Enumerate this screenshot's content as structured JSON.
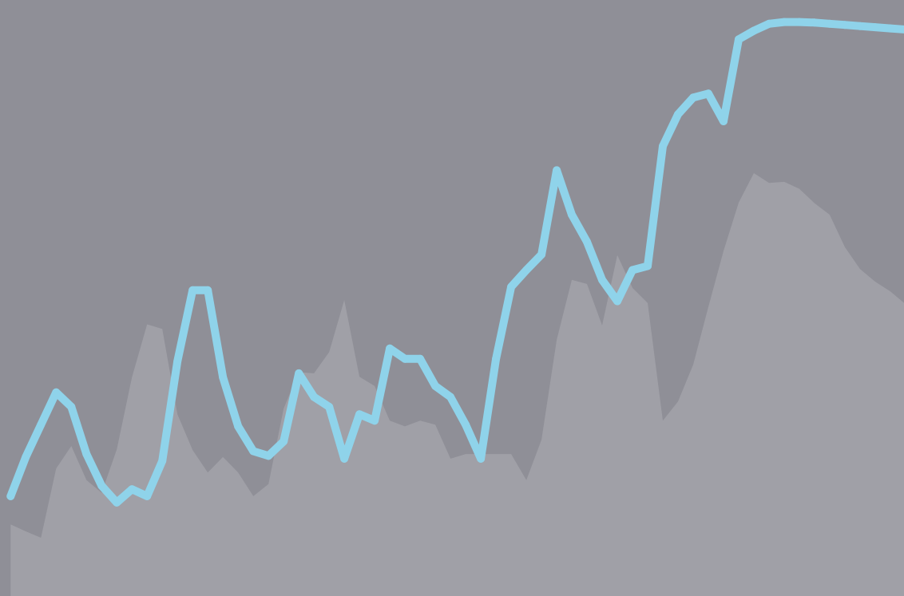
{
  "chart_data": {
    "type": "area",
    "title": "",
    "xlabel": "",
    "ylabel": "",
    "grid": false,
    "x": [
      0,
      1,
      2,
      3,
      4,
      5,
      6,
      7,
      8,
      9,
      10,
      11,
      12,
      13,
      14,
      15,
      16,
      17,
      18,
      19,
      20,
      21,
      22,
      23,
      24,
      25,
      26,
      27,
      28,
      29,
      30,
      31,
      32,
      33,
      34,
      35,
      36,
      37,
      38,
      39,
      40,
      41,
      42,
      43,
      44,
      45,
      46,
      47,
      48,
      49,
      50,
      51,
      52,
      53,
      54,
      55,
      56,
      57,
      58,
      59
    ],
    "xlim": [
      -0.7,
      58.9
    ],
    "ylim": [
      0,
      100
    ],
    "series": [
      {
        "kind": "area",
        "color": "#a0a0a8",
        "values": [
          12.4,
          11.2,
          10.1,
          22.1,
          26,
          20.1,
          17.9,
          25.4,
          37.9,
          47.1,
          46.3,
          31.5,
          25.3,
          21.4,
          24.1,
          21.4,
          17.3,
          19.4,
          32.5,
          38.8,
          38.6,
          42.3,
          51.3,
          38,
          36.4,
          30.4,
          29.4,
          30.4,
          29.7,
          23.8,
          24.6,
          24.6,
          24.6,
          24.6,
          20.1,
          27.1,
          44.4,
          54.8,
          54.1,
          46.9,
          59.1,
          53.4,
          50.8,
          30.4,
          33.7,
          40.1,
          50.1,
          59.8,
          68.2,
          73.3,
          71.6,
          71.8,
          70.6,
          68.1,
          66.1,
          60.5,
          56.7,
          54.5,
          52.8,
          50.6
        ]
      },
      {
        "kind": "line",
        "color": "#8fd3ea",
        "values": [
          17.3,
          24.1,
          29.7,
          35.3,
          32.8,
          24.6,
          19.1,
          16.2,
          18.5,
          17.3,
          23.4,
          40.7,
          53,
          53,
          37.9,
          29.4,
          25.1,
          24.3,
          26.8,
          38.6,
          34.5,
          32.8,
          23.8,
          31.5,
          30.4,
          42.9,
          41.1,
          41.1,
          36.4,
          34.5,
          29.7,
          23.8,
          41.1,
          53.6,
          56.5,
          59.2,
          73.8,
          66.1,
          61.4,
          54.8,
          51.1,
          56.5,
          57.2,
          78,
          83.5,
          86.4,
          87.1,
          82.3,
          96.5,
          98,
          99.2,
          99.5,
          99.5,
          99.4,
          99.2,
          99,
          98.8,
          98.6,
          98.4,
          98.2
        ]
      }
    ]
  }
}
